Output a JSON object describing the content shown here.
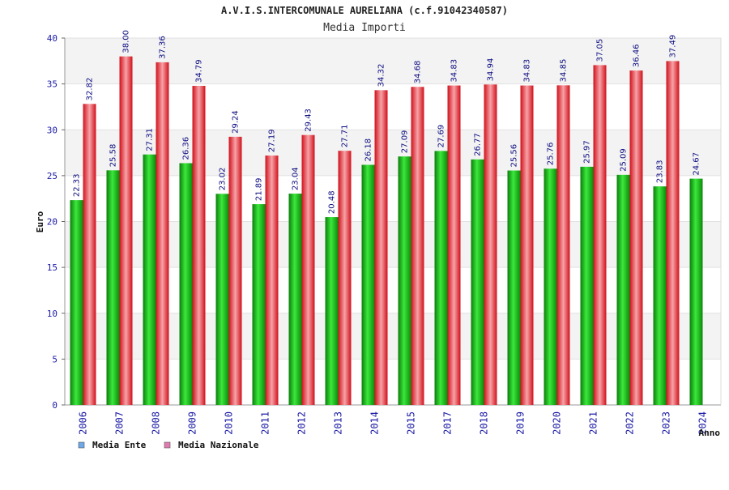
{
  "chart_data": {
    "type": "bar",
    "title": "A.V.I.S.INTERCOMUNALE AURELIANA (c.f.91042340587)",
    "subtitle": "Media Importi",
    "ylabel": "Euro",
    "xlabel": "Anno",
    "ylim": [
      0,
      40
    ],
    "yticks": [
      0,
      5,
      10,
      15,
      20,
      25,
      30,
      35,
      40
    ],
    "grid": true,
    "legend_position": "bottom-left",
    "categories": [
      "2006",
      "2007",
      "2008",
      "2009",
      "2010",
      "2011",
      "2012",
      "2013",
      "2014",
      "2015",
      "2017",
      "2018",
      "2019",
      "2020",
      "2021",
      "2022",
      "2023",
      "2024"
    ],
    "series": [
      {
        "name": "Media Ente",
        "color": "#1db31d",
        "legend_color": "#6fa8e8",
        "values": [
          22.33,
          25.58,
          27.31,
          26.36,
          23.02,
          21.89,
          23.04,
          20.48,
          26.18,
          27.09,
          27.69,
          26.77,
          25.56,
          25.76,
          25.97,
          25.09,
          23.83,
          24.67
        ],
        "labels": [
          "22.33",
          "25.58",
          "27.31",
          "26.36",
          "23.02",
          "21.89",
          "23.04",
          "20.48",
          "26.18",
          "27.09",
          "27.69",
          "26.77",
          "25.56",
          "25.76",
          "25.97",
          "25.09",
          "23.83",
          "24.67"
        ]
      },
      {
        "name": "Media Nazionale",
        "color": "#e8202a",
        "legend_color": "#e07bb0",
        "values": [
          32.82,
          38.0,
          37.36,
          34.79,
          29.24,
          27.19,
          29.43,
          27.71,
          34.32,
          34.68,
          34.83,
          34.94,
          34.83,
          34.85,
          37.05,
          36.46,
          37.49,
          null
        ],
        "labels": [
          "32.82",
          "38.00",
          "37.36",
          "34.79",
          "29.24",
          "27.19",
          "29.43",
          "27.71",
          "34.32",
          "34.68",
          "34.83",
          "34.94",
          "34.83",
          "34.85",
          "37.05",
          "36.46",
          "37.49",
          ""
        ]
      }
    ]
  }
}
